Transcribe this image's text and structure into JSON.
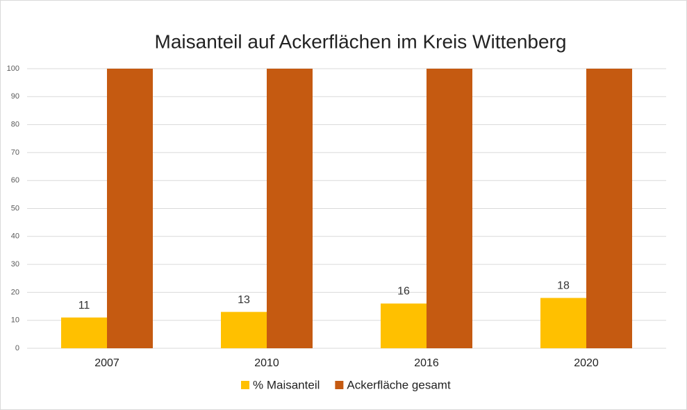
{
  "chart_data": {
    "type": "bar",
    "title": "Maisanteil auf Ackerflächen im Kreis Wittenberg",
    "categories": [
      "2007",
      "2010",
      "2016",
      "2020"
    ],
    "series": [
      {
        "name": "% Maisanteil",
        "color": "#FFC000",
        "values": [
          11,
          13,
          16,
          18
        ]
      },
      {
        "name": "Ackerfläche gesamt",
        "color": "#C55A11",
        "values": [
          100,
          100,
          100,
          100
        ]
      }
    ],
    "ylim": [
      0,
      100
    ],
    "yticks": [
      0,
      10,
      20,
      30,
      40,
      50,
      60,
      70,
      80,
      90,
      100
    ],
    "grid": true,
    "legend": "bottom",
    "data_labels_series": [
      0
    ]
  }
}
